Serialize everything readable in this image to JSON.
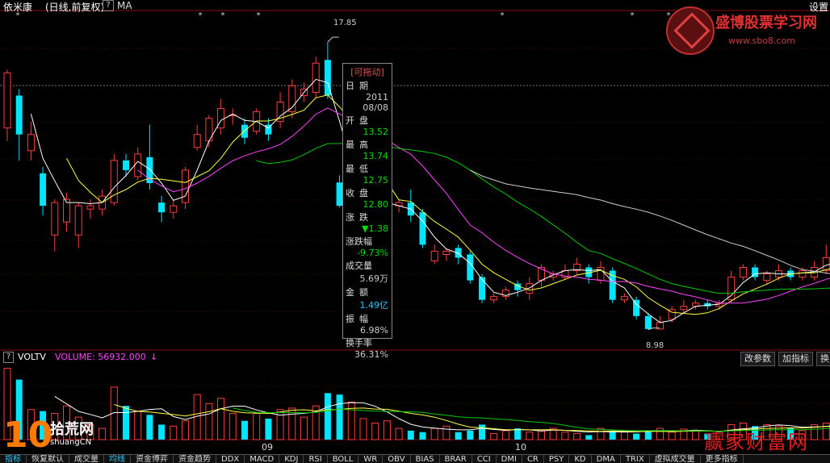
{
  "header": {
    "stock_name": "依米康",
    "chart_mode": "(日线,前复权)",
    "help_icon": "?",
    "indicator": "MA",
    "settings_label": "设置"
  },
  "tooltip": {
    "title": "[可拖动]",
    "rows": [
      {
        "label": "日期",
        "value": "2011",
        "value2": "08/08",
        "color": "#cccccc"
      },
      {
        "label": "开盘",
        "value": "13.52",
        "color": "#00e000"
      },
      {
        "label": "最高",
        "value": "13.74",
        "color": "#00e000"
      },
      {
        "label": "最低",
        "value": "12.75",
        "color": "#00e000"
      },
      {
        "label": "收盘",
        "value": "12.80",
        "color": "#00e000"
      },
      {
        "label": "涨跌",
        "value": "▼1.38",
        "color": "#00e000"
      },
      {
        "label": "涨跌幅",
        "value": "-9.73%",
        "color": "#00e000"
      },
      {
        "label": "成交量",
        "value": "5.69万",
        "color": "#cccccc"
      },
      {
        "label": "金额",
        "value": "1.49亿",
        "color": "#34c6ff"
      },
      {
        "label": "振幅",
        "value": "6.98%",
        "color": "#cccccc"
      },
      {
        "label": "换手率",
        "value": "36.31%",
        "color": "#cccccc"
      }
    ]
  },
  "price_labels": {
    "high": "17.85",
    "low": "8.98"
  },
  "volume_header": {
    "name": "VOLTV",
    "value_text": "VOLUME: 56932.000",
    "arrow": "↓",
    "help_icon": "?"
  },
  "volume_buttons": [
    "改参数",
    "加指标",
    "换"
  ],
  "x_axis": {
    "sep": "09",
    "oct": "10"
  },
  "tabs": [
    "指标",
    "恢复默认",
    "成交量",
    "均线",
    "资金博弈",
    "资金趋势",
    "DDX",
    "MACD",
    "KDJ",
    "RSI",
    "BOLL",
    "WR",
    "OBV",
    "BIAS",
    "BRAR",
    "CCI",
    "DMI",
    "CR",
    "PSY",
    "KD",
    "DMA",
    "TRIX",
    "虚拟成交量",
    "更多指标"
  ],
  "watermarks": {
    "site_name": "盛博股票学习网",
    "site_url": "www.sbo8.com",
    "logo_number": "10",
    "logo_text": "拾荒网",
    "logo_url": "shuangCN",
    "bottom_right": "赢家财富网"
  },
  "colors": {
    "up": "#ff3c3c",
    "down": "#00e5ff",
    "ma5": "#ffffff",
    "ma10": "#ffff44",
    "ma20": "#ff44ff",
    "ma60": "#00cc00",
    "ma120": "#cccccc"
  },
  "chart_data": {
    "type": "candlestick",
    "y_markers": {
      "high": 17.85,
      "low": 8.98
    },
    "candles": [
      {
        "o": 15.2,
        "c": 16.9,
        "h": 17.0,
        "l": 14.8
      },
      {
        "o": 16.2,
        "c": 15.0,
        "h": 16.4,
        "l": 14.2
      },
      {
        "o": 14.5,
        "c": 15.0,
        "h": 15.4,
        "l": 14.2
      },
      {
        "o": 13.8,
        "c": 12.8,
        "h": 14.0,
        "l": 12.5
      },
      {
        "o": 11.9,
        "c": 12.9,
        "h": 13.0,
        "l": 11.4
      },
      {
        "o": 12.3,
        "c": 13.0,
        "h": 13.2,
        "l": 12.0
      },
      {
        "o": 11.9,
        "c": 12.8,
        "h": 12.9,
        "l": 11.5
      },
      {
        "o": 12.7,
        "c": 12.8,
        "h": 13.0,
        "l": 12.4
      },
      {
        "o": 12.7,
        "c": 13.1,
        "h": 13.3,
        "l": 12.5
      },
      {
        "o": 12.9,
        "c": 14.2,
        "h": 14.4,
        "l": 12.8
      },
      {
        "o": 14.2,
        "c": 13.9,
        "h": 14.4,
        "l": 13.7
      },
      {
        "o": 13.7,
        "c": 14.4,
        "h": 14.6,
        "l": 13.6
      },
      {
        "o": 14.3,
        "c": 13.5,
        "h": 15.3,
        "l": 13.3
      },
      {
        "o": 12.9,
        "c": 12.6,
        "h": 13.1,
        "l": 12.3
      },
      {
        "o": 12.6,
        "c": 12.8,
        "h": 13.0,
        "l": 12.4
      },
      {
        "o": 12.9,
        "c": 13.9,
        "h": 14.0,
        "l": 12.7
      },
      {
        "o": 14.6,
        "c": 15.0,
        "h": 15.3,
        "l": 14.5
      },
      {
        "o": 14.8,
        "c": 15.5,
        "h": 15.6,
        "l": 14.6
      },
      {
        "o": 15.2,
        "c": 15.8,
        "h": 16.1,
        "l": 15.0
      },
      {
        "o": 15.6,
        "c": 15.6,
        "h": 15.8,
        "l": 15.3
      },
      {
        "o": 15.3,
        "c": 14.9,
        "h": 15.5,
        "l": 14.7
      },
      {
        "o": 15.1,
        "c": 15.7,
        "h": 15.8,
        "l": 15.0
      },
      {
        "o": 15.3,
        "c": 15.0,
        "h": 15.5,
        "l": 14.8
      },
      {
        "o": 15.4,
        "c": 16.0,
        "h": 16.3,
        "l": 15.2
      },
      {
        "o": 15.7,
        "c": 16.5,
        "h": 16.7,
        "l": 15.5
      },
      {
        "o": 16.2,
        "c": 16.4,
        "h": 16.6,
        "l": 16.0
      },
      {
        "o": 16.3,
        "c": 17.2,
        "h": 17.4,
        "l": 16.1
      },
      {
        "o": 17.3,
        "c": 16.2,
        "h": 17.85,
        "l": 16.1
      },
      {
        "o": 13.52,
        "c": 12.8,
        "h": 13.74,
        "l": 12.75
      },
      {
        "o": 13.2,
        "c": 13.5,
        "h": 13.9,
        "l": 13.0
      },
      {
        "o": 13.0,
        "c": 13.2,
        "h": 13.4,
        "l": 12.8
      },
      {
        "o": 12.8,
        "c": 12.8,
        "h": 13.0,
        "l": 12.6
      },
      {
        "o": 12.6,
        "c": 12.7,
        "h": 12.8,
        "l": 12.5
      },
      {
        "o": 12.8,
        "c": 12.9,
        "h": 13.0,
        "l": 12.6
      },
      {
        "o": 12.9,
        "c": 12.5,
        "h": 13.3,
        "l": 12.3
      },
      {
        "o": 12.6,
        "c": 11.6,
        "h": 12.7,
        "l": 11.5
      },
      {
        "o": 11.1,
        "c": 11.4,
        "h": 11.6,
        "l": 11.0
      },
      {
        "o": 11.3,
        "c": 11.4,
        "h": 11.5,
        "l": 11.1
      },
      {
        "o": 11.5,
        "c": 11.2,
        "h": 11.6,
        "l": 11.0
      },
      {
        "o": 11.3,
        "c": 10.5,
        "h": 11.4,
        "l": 10.4
      },
      {
        "o": 10.6,
        "c": 9.9,
        "h": 10.7,
        "l": 9.8
      },
      {
        "o": 9.9,
        "c": 10.0,
        "h": 10.1,
        "l": 9.8
      },
      {
        "o": 10.0,
        "c": 10.2,
        "h": 10.3,
        "l": 9.9
      },
      {
        "o": 10.4,
        "c": 10.2,
        "h": 10.5,
        "l": 10.0
      },
      {
        "o": 10.1,
        "c": 10.4,
        "h": 10.6,
        "l": 9.9
      },
      {
        "o": 10.5,
        "c": 10.9,
        "h": 11.0,
        "l": 10.3
      },
      {
        "o": 10.6,
        "c": 10.7,
        "h": 10.8,
        "l": 10.5
      },
      {
        "o": 10.6,
        "c": 10.8,
        "h": 11.0,
        "l": 10.5
      },
      {
        "o": 10.8,
        "c": 11.0,
        "h": 11.2,
        "l": 10.7
      },
      {
        "o": 10.9,
        "c": 10.6,
        "h": 11.0,
        "l": 10.4
      },
      {
        "o": 10.5,
        "c": 10.9,
        "h": 11.1,
        "l": 10.4
      },
      {
        "o": 10.8,
        "c": 9.9,
        "h": 10.9,
        "l": 9.8
      },
      {
        "o": 9.9,
        "c": 10.0,
        "h": 10.1,
        "l": 9.8
      },
      {
        "o": 9.9,
        "c": 9.4,
        "h": 10.0,
        "l": 9.3
      },
      {
        "o": 9.4,
        "c": 9.0,
        "h": 9.5,
        "l": 8.98
      },
      {
        "o": 9.0,
        "c": 9.2,
        "h": 9.4,
        "l": 8.98
      },
      {
        "o": 9.3,
        "c": 9.6,
        "h": 9.7,
        "l": 9.2
      },
      {
        "o": 9.6,
        "c": 9.7,
        "h": 9.9,
        "l": 9.5
      },
      {
        "o": 9.7,
        "c": 9.8,
        "h": 9.9,
        "l": 9.6
      },
      {
        "o": 9.8,
        "c": 9.7,
        "h": 9.9,
        "l": 9.6
      },
      {
        "o": 9.7,
        "c": 9.8,
        "h": 9.9,
        "l": 9.6
      },
      {
        "o": 9.9,
        "c": 10.6,
        "h": 10.8,
        "l": 9.8
      },
      {
        "o": 10.6,
        "c": 10.9,
        "h": 11.0,
        "l": 10.5
      },
      {
        "o": 10.9,
        "c": 10.6,
        "h": 11.0,
        "l": 10.5
      },
      {
        "o": 10.5,
        "c": 10.7,
        "h": 10.8,
        "l": 10.4
      },
      {
        "o": 10.6,
        "c": 10.8,
        "h": 11.0,
        "l": 10.5
      },
      {
        "o": 10.8,
        "c": 10.6,
        "h": 10.9,
        "l": 10.5
      },
      {
        "o": 10.6,
        "c": 10.8,
        "h": 10.9,
        "l": 10.5
      },
      {
        "o": 10.6,
        "c": 10.9,
        "h": 11.1,
        "l": 10.5
      },
      {
        "o": 10.8,
        "c": 11.2,
        "h": 11.6,
        "l": 10.7
      },
      {
        "o": 10.9,
        "c": 11.1,
        "h": 11.2,
        "l": 10.8
      }
    ],
    "volume": [
      95,
      80,
      40,
      38,
      35,
      45,
      30,
      20,
      15,
      70,
      45,
      38,
      33,
      20,
      18,
      25,
      60,
      48,
      55,
      35,
      25,
      35,
      28,
      40,
      42,
      30,
      45,
      62,
      60,
      50,
      28,
      22,
      25,
      15,
      12,
      10,
      15,
      18,
      10,
      12,
      20,
      8,
      12,
      15,
      10,
      12,
      15,
      10,
      8,
      6,
      15,
      12,
      10,
      8,
      12,
      15,
      10,
      14,
      12,
      8,
      10,
      20,
      22,
      18,
      20,
      18,
      15,
      12,
      20,
      22,
      18
    ]
  }
}
